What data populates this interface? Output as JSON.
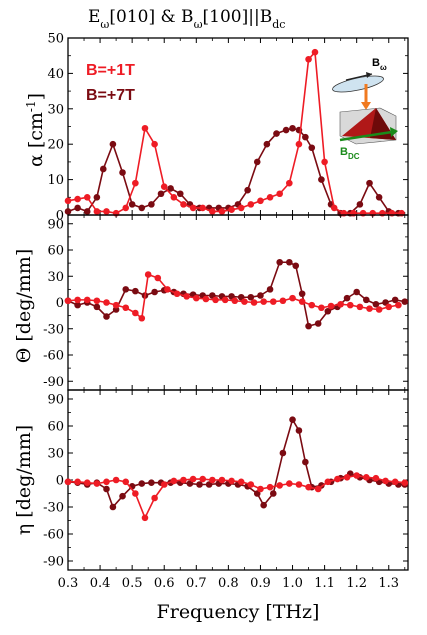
{
  "title": {
    "main": "E",
    "sub1": "ω",
    "mid": "[010] & B",
    "sub2": "ω",
    "end": "[100]||B",
    "sub3": "dc"
  },
  "xlabel": "Frequency [THz]",
  "colors": {
    "bright": "#ee1c25",
    "dark": "#7b0b12",
    "axis": "#000000",
    "inset_green": "#1a8a1a",
    "inset_orange": "#f07a20"
  },
  "legend": [
    {
      "label": "B=+1T",
      "color": "#ee1c25"
    },
    {
      "label": "B=+7T",
      "color": "#7b0b12"
    }
  ],
  "inset": {
    "b_omega_main": "B",
    "b_omega_sub": "ω",
    "b_dc_main": "B",
    "b_dc_sub": "DC"
  },
  "chart_data": [
    {
      "type": "line",
      "ylabel": "α [cm-1]",
      "ylabel_main": "α [cm",
      "ylabel_sup": "-1",
      "ylabel_end": "]",
      "xlim": [
        0.3,
        1.36
      ],
      "ylim": [
        0,
        50
      ],
      "xticks": [
        "0.3",
        "0.4",
        "0.5",
        "0.6",
        "0.7",
        "0.8",
        "0.9",
        "1.0",
        "1.1",
        "1.2",
        "1.3"
      ],
      "yticks": [
        "0",
        "10",
        "20",
        "30",
        "40",
        "50"
      ],
      "series": [
        {
          "name": "B=+1T",
          "color": "#ee1c25",
          "x": [
            0.3,
            0.33,
            0.36,
            0.39,
            0.42,
            0.45,
            0.48,
            0.51,
            0.54,
            0.57,
            0.6,
            0.63,
            0.66,
            0.69,
            0.72,
            0.75,
            0.78,
            0.81,
            0.84,
            0.87,
            0.9,
            0.93,
            0.96,
            0.99,
            1.02,
            1.05,
            1.07,
            1.1,
            1.13,
            1.16,
            1.19,
            1.22,
            1.25,
            1.28,
            1.31,
            1.34
          ],
          "y": [
            4,
            4.5,
            5,
            1,
            1,
            0.5,
            2,
            9,
            24.5,
            20,
            8,
            5,
            3,
            2,
            2,
            1,
            1,
            1.5,
            2,
            3,
            4,
            5,
            6,
            9,
            20,
            44,
            46,
            15,
            2,
            0.5,
            0.5,
            0.5,
            0.5,
            0.5,
            0.5,
            0.5
          ]
        },
        {
          "name": "B=+7T",
          "color": "#7b0b12",
          "x": [
            0.3,
            0.33,
            0.36,
            0.39,
            0.41,
            0.44,
            0.47,
            0.5,
            0.53,
            0.56,
            0.59,
            0.62,
            0.65,
            0.68,
            0.71,
            0.74,
            0.77,
            0.8,
            0.83,
            0.86,
            0.89,
            0.92,
            0.95,
            0.98,
            1.0,
            1.02,
            1.04,
            1.06,
            1.09,
            1.12,
            1.15,
            1.18,
            1.21,
            1.24,
            1.27,
            1.3,
            1.33
          ],
          "y": [
            1,
            2,
            1,
            5,
            13,
            20,
            12,
            3,
            2,
            3,
            6,
            7.5,
            6,
            3,
            2,
            2,
            2,
            2,
            3,
            7,
            15,
            20,
            23,
            24,
            24.5,
            24,
            22,
            19,
            10,
            3,
            0.5,
            0.5,
            3,
            9,
            5,
            1,
            0.5
          ]
        }
      ]
    },
    {
      "type": "line",
      "ylabel": "Θ [deg/mm]",
      "xlim": [
        0.3,
        1.36
      ],
      "ylim": [
        -100,
        100
      ],
      "xticks": [
        "0.3",
        "0.4",
        "0.5",
        "0.6",
        "0.7",
        "0.8",
        "0.9",
        "1.0",
        "1.1",
        "1.2",
        "1.3"
      ],
      "yticks": [
        "90",
        "60",
        "30",
        "0",
        "-30",
        "-60",
        "-90"
      ],
      "series": [
        {
          "name": "B=+1T",
          "color": "#ee1c25",
          "x": [
            0.3,
            0.33,
            0.36,
            0.39,
            0.42,
            0.45,
            0.48,
            0.51,
            0.53,
            0.55,
            0.58,
            0.61,
            0.64,
            0.67,
            0.7,
            0.73,
            0.76,
            0.79,
            0.82,
            0.85,
            0.88,
            0.91,
            0.94,
            0.97,
            1.0,
            1.03,
            1.06,
            1.09,
            1.12,
            1.15,
            1.18,
            1.21,
            1.24,
            1.27,
            1.3,
            1.33
          ],
          "y": [
            2,
            3,
            3,
            2,
            0,
            -3,
            -6,
            -12,
            -18,
            32,
            28,
            15,
            10,
            7,
            5,
            4,
            3,
            3,
            2,
            1,
            0,
            1,
            1,
            2,
            5,
            1,
            -3,
            -6,
            -4,
            -2,
            -3,
            -5,
            -7,
            -8,
            -5,
            -3
          ]
        },
        {
          "name": "B=+7T",
          "color": "#7b0b12",
          "x": [
            0.3,
            0.33,
            0.36,
            0.39,
            0.42,
            0.45,
            0.48,
            0.51,
            0.54,
            0.57,
            0.6,
            0.63,
            0.66,
            0.69,
            0.72,
            0.75,
            0.78,
            0.81,
            0.84,
            0.87,
            0.9,
            0.93,
            0.96,
            0.99,
            1.01,
            1.03,
            1.05,
            1.08,
            1.11,
            1.14,
            1.17,
            1.2,
            1.23,
            1.26,
            1.29,
            1.32,
            1.35
          ],
          "y": [
            2,
            -3,
            0,
            -5,
            -16,
            -8,
            15,
            13,
            8,
            12,
            14,
            12,
            10,
            9,
            8,
            8,
            7,
            7,
            6,
            6,
            8,
            15,
            46,
            46,
            42,
            10,
            -27,
            -24,
            -10,
            -5,
            5,
            12,
            3,
            -2,
            0,
            3,
            1
          ]
        }
      ]
    },
    {
      "type": "line",
      "ylabel": "η [deg/mm]",
      "xlim": [
        0.3,
        1.36
      ],
      "ylim": [
        -100,
        100
      ],
      "xticks": [
        "0.3",
        "0.4",
        "0.5",
        "0.6",
        "0.7",
        "0.8",
        "0.9",
        "1.0",
        "1.1",
        "1.2",
        "1.3"
      ],
      "yticks": [
        "90",
        "60",
        "30",
        "0",
        "-30",
        "-60",
        "-90"
      ],
      "series": [
        {
          "name": "B=+1T",
          "color": "#ee1c25",
          "x": [
            0.3,
            0.33,
            0.36,
            0.39,
            0.42,
            0.45,
            0.48,
            0.51,
            0.54,
            0.57,
            0.6,
            0.63,
            0.66,
            0.69,
            0.72,
            0.75,
            0.78,
            0.81,
            0.84,
            0.87,
            0.9,
            0.93,
            0.96,
            0.99,
            1.02,
            1.05,
            1.08,
            1.11,
            1.14,
            1.17,
            1.2,
            1.23,
            1.26,
            1.29,
            1.32,
            1.35
          ],
          "y": [
            -2,
            -2,
            -3,
            -4,
            -2,
            0,
            -2,
            -15,
            -42,
            -20,
            -5,
            -1,
            0,
            1,
            1,
            0,
            0,
            -1,
            -2,
            -5,
            -10,
            -8,
            -6,
            -4,
            -5,
            -8,
            -10,
            -2,
            1,
            3,
            5,
            3,
            2,
            -1,
            -2,
            -3
          ]
        },
        {
          "name": "B=+7T",
          "color": "#7b0b12",
          "x": [
            0.3,
            0.33,
            0.36,
            0.39,
            0.42,
            0.44,
            0.47,
            0.5,
            0.53,
            0.56,
            0.59,
            0.62,
            0.65,
            0.68,
            0.71,
            0.74,
            0.77,
            0.8,
            0.83,
            0.86,
            0.89,
            0.91,
            0.94,
            0.97,
            1.0,
            1.02,
            1.04,
            1.06,
            1.09,
            1.12,
            1.15,
            1.18,
            1.21,
            1.24,
            1.27,
            1.3,
            1.33,
            1.35
          ],
          "y": [
            -2,
            -3,
            -5,
            -3,
            -10,
            -30,
            -18,
            -7,
            -4,
            -3,
            -3,
            -3,
            -3,
            -4,
            -5,
            -5,
            -4,
            -4,
            -5,
            -7,
            -15,
            -28,
            -15,
            30,
            67,
            55,
            20,
            -8,
            -6,
            -2,
            2,
            7,
            3,
            0,
            -2,
            -4,
            -5,
            -5
          ]
        }
      ]
    }
  ]
}
